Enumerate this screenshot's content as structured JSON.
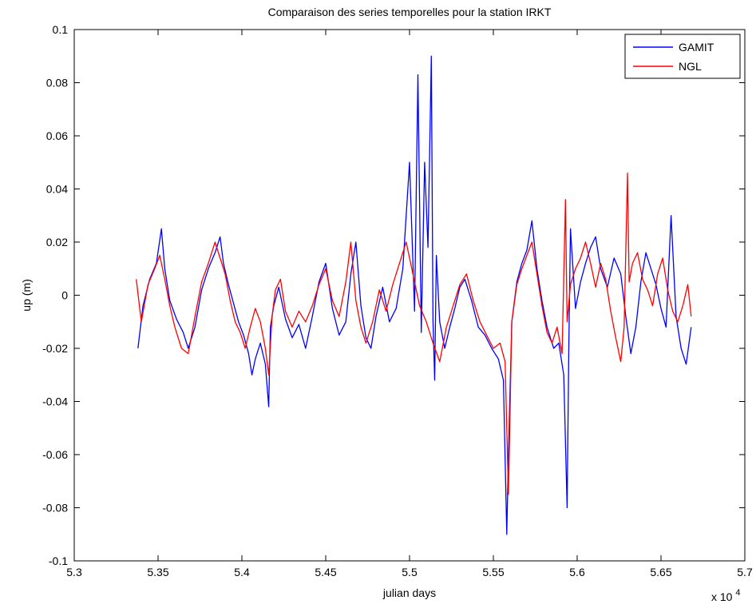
{
  "chart_data": {
    "type": "line",
    "title": "Comparaison des series temporelles pour la station IRKT",
    "xlabel": "julian days",
    "ylabel": "up (m)",
    "x_exponent_label": "x 10",
    "x_exponent_power": "4",
    "xlim": [
      5.3,
      5.7
    ],
    "ylim": [
      -0.1,
      0.1
    ],
    "xticks": [
      5.3,
      5.35,
      5.4,
      5.45,
      5.5,
      5.55,
      5.6,
      5.65,
      5.7
    ],
    "xtick_labels": [
      "5.3",
      "5.35",
      "5.4",
      "5.45",
      "5.5",
      "5.55",
      "5.6",
      "5.65",
      "5.7"
    ],
    "yticks": [
      -0.1,
      -0.08,
      -0.06,
      -0.04,
      -0.02,
      0,
      0.02,
      0.04,
      0.06,
      0.08,
      0.1
    ],
    "ytick_labels": [
      "-0.1",
      "-0.08",
      "-0.06",
      "-0.04",
      "-0.02",
      "0",
      "0.02",
      "0.04",
      "0.06",
      "0.08",
      "0.1"
    ],
    "grid": false,
    "legend_position": "top-right",
    "series": [
      {
        "name": "GAMIT",
        "color": "#0000ff",
        "x": [
          5.338,
          5.341,
          5.345,
          5.349,
          5.352,
          5.354,
          5.357,
          5.361,
          5.365,
          5.368,
          5.372,
          5.376,
          5.38,
          5.384,
          5.387,
          5.389,
          5.392,
          5.395,
          5.398,
          5.401,
          5.404,
          5.406,
          5.408,
          5.411,
          5.414,
          5.416,
          5.417,
          5.419,
          5.422,
          5.426,
          5.43,
          5.434,
          5.438,
          5.442,
          5.446,
          5.45,
          5.454,
          5.458,
          5.462,
          5.465,
          5.468,
          5.471,
          5.474,
          5.477,
          5.48,
          5.484,
          5.488,
          5.492,
          5.496,
          5.5,
          5.503,
          5.505,
          5.507,
          5.509,
          5.511,
          5.513,
          5.514,
          5.515,
          5.516,
          5.518,
          5.521,
          5.524,
          5.527,
          5.53,
          5.533,
          5.537,
          5.541,
          5.545,
          5.549,
          5.553,
          5.556,
          5.558,
          5.559,
          5.561,
          5.564,
          5.567,
          5.57,
          5.573,
          5.576,
          5.579,
          5.582,
          5.586,
          5.589,
          5.592,
          5.594,
          5.595,
          5.596,
          5.599,
          5.602,
          5.605,
          5.608,
          5.611,
          5.614,
          5.618,
          5.622,
          5.626,
          5.629,
          5.632,
          5.635,
          5.638,
          5.641,
          5.644,
          5.647,
          5.65,
          5.653,
          5.656,
          5.659,
          5.662,
          5.665,
          5.668
        ],
        "y": [
          -0.02,
          -0.004,
          0.006,
          0.012,
          0.025,
          0.01,
          -0.002,
          -0.009,
          -0.014,
          -0.02,
          -0.012,
          0.002,
          0.01,
          0.016,
          0.022,
          0.012,
          0.004,
          -0.003,
          -0.01,
          -0.015,
          -0.022,
          -0.03,
          -0.024,
          -0.018,
          -0.026,
          -0.042,
          -0.012,
          -0.004,
          0.003,
          -0.009,
          -0.016,
          -0.011,
          -0.02,
          -0.008,
          0.005,
          0.012,
          -0.005,
          -0.015,
          -0.01,
          0.008,
          0.02,
          -0.004,
          -0.016,
          -0.02,
          -0.008,
          0.003,
          -0.01,
          -0.005,
          0.01,
          0.05,
          -0.006,
          0.083,
          -0.014,
          0.05,
          0.018,
          0.09,
          -0.01,
          -0.032,
          0.015,
          -0.01,
          -0.02,
          -0.012,
          -0.005,
          0.003,
          0.006,
          -0.002,
          -0.012,
          -0.015,
          -0.02,
          -0.024,
          -0.032,
          -0.09,
          -0.06,
          -0.01,
          0.005,
          0.012,
          0.017,
          0.028,
          0.01,
          -0.002,
          -0.012,
          -0.02,
          -0.018,
          -0.03,
          -0.08,
          -0.02,
          0.025,
          -0.005,
          0.005,
          0.012,
          0.018,
          0.022,
          0.01,
          0.003,
          0.014,
          0.008,
          -0.008,
          -0.022,
          -0.012,
          0.005,
          0.016,
          0.01,
          0.004,
          -0.005,
          -0.012,
          0.03,
          -0.008,
          -0.02,
          -0.026,
          -0.012
        ]
      },
      {
        "name": "NGL",
        "color": "#ff0000",
        "x": [
          5.337,
          5.34,
          5.344,
          5.348,
          5.351,
          5.354,
          5.357,
          5.36,
          5.364,
          5.368,
          5.372,
          5.376,
          5.38,
          5.384,
          5.387,
          5.39,
          5.393,
          5.396,
          5.399,
          5.402,
          5.405,
          5.408,
          5.411,
          5.414,
          5.416,
          5.418,
          5.42,
          5.423,
          5.426,
          5.43,
          5.434,
          5.438,
          5.442,
          5.446,
          5.45,
          5.454,
          5.458,
          5.462,
          5.465,
          5.468,
          5.471,
          5.474,
          5.478,
          5.482,
          5.486,
          5.49,
          5.494,
          5.498,
          5.502,
          5.506,
          5.51,
          5.514,
          5.518,
          5.522,
          5.526,
          5.53,
          5.534,
          5.538,
          5.542,
          5.546,
          5.55,
          5.554,
          5.557,
          5.559,
          5.561,
          5.564,
          5.567,
          5.57,
          5.573,
          5.576,
          5.579,
          5.582,
          5.585,
          5.588,
          5.591,
          5.593,
          5.594,
          5.596,
          5.599,
          5.602,
          5.605,
          5.608,
          5.611,
          5.614,
          5.617,
          5.62,
          5.623,
          5.626,
          5.628,
          5.63,
          5.631,
          5.633,
          5.636,
          5.639,
          5.642,
          5.645,
          5.648,
          5.651,
          5.654,
          5.657,
          5.66,
          5.663,
          5.666,
          5.668
        ],
        "y": [
          0.006,
          -0.01,
          0.004,
          0.01,
          0.015,
          0.006,
          -0.004,
          -0.012,
          -0.02,
          -0.022,
          -0.008,
          0.005,
          0.012,
          0.02,
          0.014,
          0.008,
          -0.002,
          -0.01,
          -0.014,
          -0.02,
          -0.012,
          -0.005,
          -0.01,
          -0.02,
          -0.03,
          -0.008,
          0.002,
          0.006,
          -0.006,
          -0.012,
          -0.006,
          -0.01,
          -0.004,
          0.004,
          0.01,
          -0.002,
          -0.008,
          0.005,
          0.02,
          -0.002,
          -0.012,
          -0.018,
          -0.01,
          0.002,
          -0.006,
          0.004,
          0.012,
          0.02,
          0.008,
          -0.004,
          -0.01,
          -0.018,
          -0.025,
          -0.012,
          -0.004,
          0.004,
          0.008,
          -0.002,
          -0.01,
          -0.015,
          -0.02,
          -0.018,
          -0.025,
          -0.075,
          -0.01,
          0.004,
          0.01,
          0.015,
          0.02,
          0.008,
          -0.004,
          -0.014,
          -0.018,
          -0.012,
          -0.022,
          0.036,
          -0.01,
          0.004,
          0.01,
          0.014,
          0.02,
          0.012,
          0.003,
          0.012,
          0.006,
          -0.006,
          -0.016,
          -0.025,
          -0.012,
          0.046,
          0.005,
          0.012,
          0.016,
          0.006,
          0.002,
          -0.004,
          0.008,
          0.014,
          0.002,
          -0.006,
          -0.01,
          -0.004,
          0.004,
          -0.008
        ]
      }
    ]
  }
}
